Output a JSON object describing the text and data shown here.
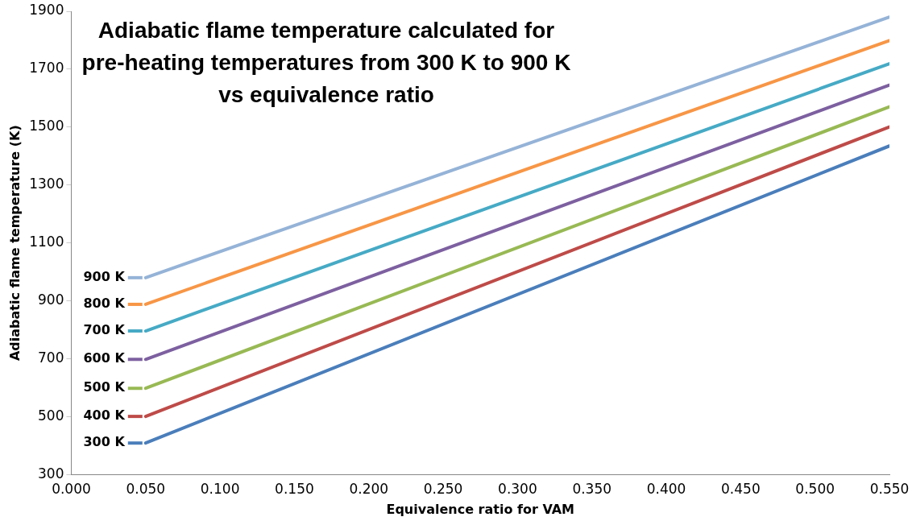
{
  "chart_data": {
    "type": "line",
    "title": "Adiabatic flame temperature calculated for pre-heating temperatures from 300 K to 900 K vs equivalence ratio",
    "xlabel": "Equivalence ratio for VAM",
    "ylabel": "Adiabatic flame temperature (K)",
    "x": [
      0.05,
      0.55
    ],
    "series": [
      {
        "name": "300 K",
        "color": "#4a7ebb",
        "values": [
          409,
          1435
        ]
      },
      {
        "name": "400 K",
        "color": "#be4b48",
        "values": [
          501,
          1501
        ]
      },
      {
        "name": "500 K",
        "color": "#98b954",
        "values": [
          598,
          1570
        ]
      },
      {
        "name": "600 K",
        "color": "#7d60a0",
        "values": [
          698,
          1645
        ]
      },
      {
        "name": "700 K",
        "color": "#46aac5",
        "values": [
          796,
          1719
        ]
      },
      {
        "name": "800 K",
        "color": "#f79646",
        "values": [
          888,
          1799
        ]
      },
      {
        "name": "900 K",
        "color": "#95b3d7",
        "values": [
          980,
          1880
        ]
      }
    ],
    "xlim": [
      0,
      0.55
    ],
    "xticks": [
      {
        "value": 0,
        "label": "0.000"
      },
      {
        "value": 0.05,
        "label": "0.050"
      },
      {
        "value": 0.1,
        "label": "0.100"
      },
      {
        "value": 0.15,
        "label": "0.150"
      },
      {
        "value": 0.2,
        "label": "0.200"
      },
      {
        "value": 0.25,
        "label": "0.250"
      },
      {
        "value": 0.3,
        "label": "0.300"
      },
      {
        "value": 0.35,
        "label": "0.350"
      },
      {
        "value": 0.4,
        "label": "0.400"
      },
      {
        "value": 0.45,
        "label": "0.450"
      },
      {
        "value": 0.5,
        "label": "0.500"
      },
      {
        "value": 0.55,
        "label": "0.550"
      }
    ],
    "ylim": [
      300,
      1900
    ],
    "yticks": [
      300,
      500,
      700,
      900,
      1100,
      1300,
      1500,
      1700,
      1900
    ],
    "grid": false,
    "legend": "left",
    "marker": "none",
    "line_style": "solid"
  }
}
